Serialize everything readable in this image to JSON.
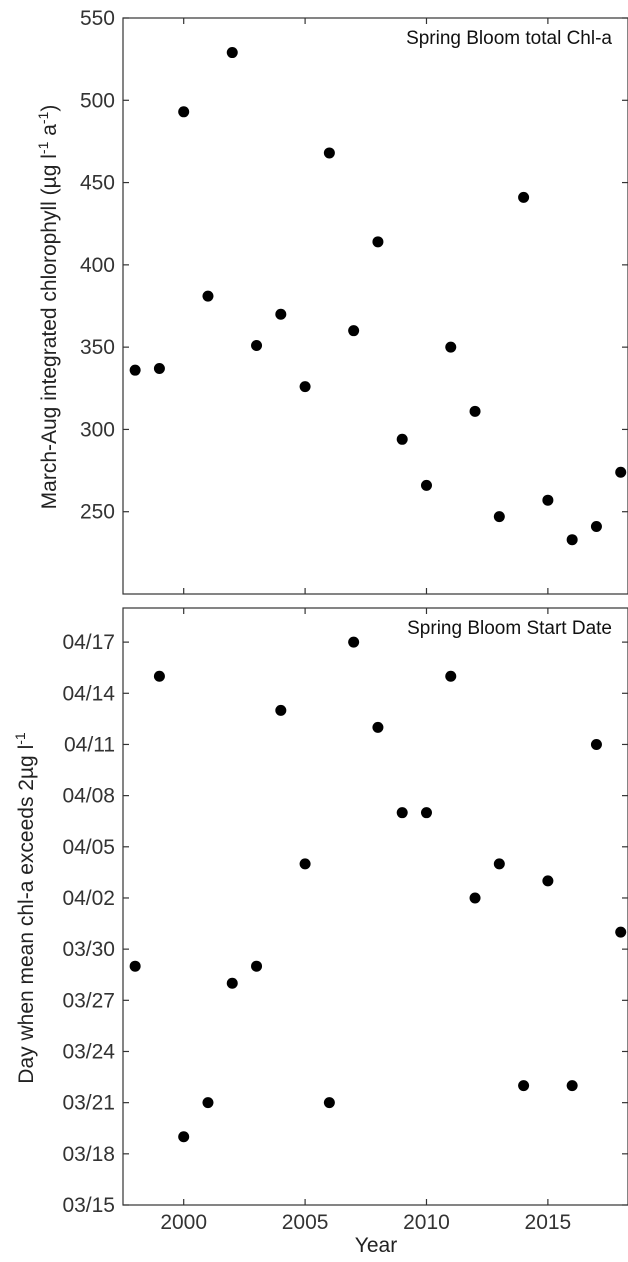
{
  "chart_data": [
    {
      "type": "scatter",
      "title": "Spring Bloom total Chl-a",
      "ylabel": "March-Aug integrated chlorophyll (µg l",
      "ylabel_sup1": "-1",
      "ylabel_mid": " a",
      "ylabel_sup2": "-1",
      "ylabel_end": ")",
      "xlim": [
        1997.5,
        2018.3
      ],
      "ylim": [
        200,
        550
      ],
      "yticks": [
        250,
        300,
        350,
        400,
        450,
        500,
        550
      ],
      "ytick_labels": [
        "250",
        "300",
        "350",
        "400",
        "450",
        "500",
        "550"
      ],
      "x": [
        1998,
        1999,
        2000,
        2001,
        2002,
        2003,
        2004,
        2005,
        2006,
        2007,
        2008,
        2009,
        2010,
        2011,
        2012,
        2013,
        2014,
        2015,
        2016,
        2017,
        2018
      ],
      "y": [
        336,
        337,
        493,
        381,
        529,
        351,
        370,
        326,
        468,
        360,
        414,
        294,
        266,
        350,
        311,
        247,
        441,
        257,
        233,
        241,
        274
      ],
      "marker_color": "#000000"
    },
    {
      "type": "scatter",
      "title": "Spring Bloom Start Date",
      "ylabel": "Day when mean chl-a exceeds 2µg l",
      "ylabel_sup": "-1",
      "xlabel": "Year",
      "xlim": [
        1997.5,
        2018.3
      ],
      "ylim": [
        "03/15",
        "04/19"
      ],
      "yticks": [
        "03/15",
        "03/18",
        "03/21",
        "03/24",
        "03/27",
        "03/30",
        "04/02",
        "04/05",
        "04/08",
        "04/11",
        "04/14",
        "04/17"
      ],
      "xticks": [
        2000,
        2005,
        2010,
        2015
      ],
      "xtick_labels": [
        "2000",
        "2005",
        "2010",
        "2015"
      ],
      "x": [
        1998,
        1999,
        2000,
        2001,
        2002,
        2003,
        2004,
        2005,
        2006,
        2007,
        2008,
        2009,
        2010,
        2011,
        2012,
        2013,
        2014,
        2015,
        2016,
        2017,
        2018
      ],
      "y": [
        "03/29",
        "04/15",
        "03/19",
        "03/21",
        "03/28",
        "03/29",
        "04/13",
        "04/04",
        "03/21",
        "04/17",
        "04/12",
        "04/07",
        "04/07",
        "04/15",
        "04/02",
        "04/04",
        "03/22",
        "04/03",
        "03/22",
        "04/11",
        "03/31"
      ],
      "marker_color": "#000000"
    }
  ]
}
